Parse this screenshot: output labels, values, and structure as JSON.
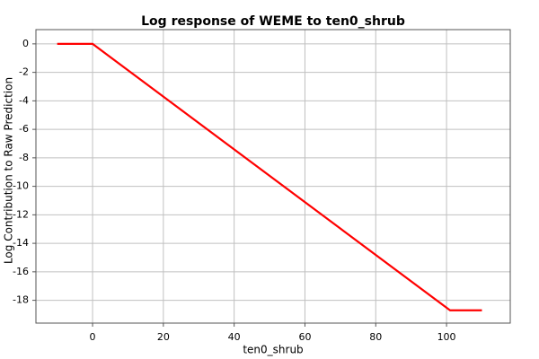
{
  "chart_data": {
    "type": "line",
    "title": "Log response of WEME to ten0_shrub",
    "x_label": "ten0_shrub",
    "y_label": "Log Contribution to Raw Prediction",
    "x": [
      -10,
      0,
      101,
      110
    ],
    "series": [
      {
        "color": "#ff0000",
        "values": [
          0,
          0,
          -18.7,
          -18.7
        ]
      }
    ],
    "xlim": [
      -16,
      118
    ],
    "xticks": [
      0,
      20,
      40,
      60,
      80,
      100
    ],
    "ylim": [
      -19.6,
      1
    ],
    "yticks": [
      0,
      -2,
      -4,
      -6,
      -8,
      -10,
      -12,
      -14,
      -16,
      -18
    ],
    "grid": true
  }
}
